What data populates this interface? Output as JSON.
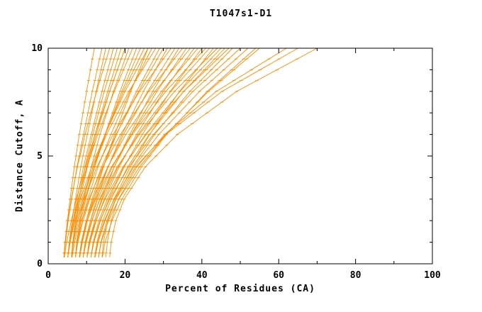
{
  "colors": {
    "line": "#FF8C00",
    "axis": "#000000",
    "background": "#FFFFFF"
  },
  "chart_data": {
    "type": "line",
    "title": "T1047s1-D1",
    "xlabel": "Percent of Residues (CA)",
    "ylabel": "Distance Cutoff, A",
    "xlim": [
      0,
      100
    ],
    "ylim": [
      0,
      10
    ],
    "x_ticks_major": [
      0,
      20,
      40,
      60,
      80,
      100
    ],
    "x_ticks_minor": [
      10,
      30,
      50,
      70,
      90
    ],
    "y_ticks_major": [
      0,
      5,
      10
    ],
    "y_ticks_minor": [
      1,
      2,
      3,
      4,
      6,
      7,
      8,
      9
    ],
    "legend": "none",
    "grid": false,
    "y_levels": [
      0.3,
      1,
      2,
      3,
      4.5,
      6,
      8,
      10
    ],
    "series": [
      {
        "x": [
          4.1,
          4.4,
          5.0,
          5.7,
          6.8,
          8.1,
          10.0,
          12
        ]
      },
      {
        "x": [
          4.1,
          4.5,
          5.2,
          6.1,
          7.5,
          9.2,
          11.5,
          14
        ]
      },
      {
        "x": [
          5.1,
          5.5,
          6.2,
          7.1,
          8.5,
          10.2,
          12.5,
          15
        ]
      },
      {
        "x": [
          4.1,
          4.4,
          5.1,
          6.0,
          7.6,
          9.6,
          12.6,
          16
        ]
      },
      {
        "x": [
          5.1,
          5.6,
          6.5,
          7.5,
          9.2,
          11.2,
          14.0,
          17
        ]
      },
      {
        "x": [
          6.1,
          6.4,
          7.1,
          8.0,
          9.6,
          11.6,
          14.6,
          18
        ]
      },
      {
        "x": [
          5.1,
          5.7,
          6.7,
          7.9,
          10.0,
          12.2,
          15.5,
          19
        ]
      },
      {
        "x": [
          6.1,
          6.4,
          7.3,
          8.3,
          10.2,
          12.5,
          16.0,
          20
        ]
      },
      {
        "x": [
          4.2,
          4.8,
          6.0,
          7.3,
          9.7,
          12.2,
          16.0,
          20
        ]
      },
      {
        "x": [
          7.1,
          7.4,
          8.3,
          9.3,
          11.2,
          13.5,
          17.0,
          21
        ]
      },
      {
        "x": [
          5.1,
          5.5,
          6.5,
          7.8,
          10.1,
          12.9,
          17.2,
          22
        ]
      },
      {
        "x": [
          6.2,
          6.9,
          8.1,
          9.6,
          12.0,
          14.8,
          18.7,
          23
        ]
      },
      {
        "x": [
          7.1,
          7.5,
          8.5,
          9.8,
          12.1,
          14.9,
          19.2,
          24
        ]
      },
      {
        "x": [
          6.1,
          6.6,
          7.7,
          9.1,
          11.7,
          14.8,
          19.6,
          25
        ]
      },
      {
        "x": [
          8.2,
          8.9,
          10.2,
          11.8,
          14.4,
          17.3,
          21.5,
          26
        ]
      },
      {
        "x": [
          5.1,
          5.7,
          6.9,
          8.4,
          11.3,
          14.8,
          20.0,
          26
        ]
      },
      {
        "x": [
          7.1,
          7.6,
          8.8,
          10.3,
          13.0,
          16.3,
          21.3,
          27
        ]
      },
      {
        "x": [
          6.1,
          6.4,
          7.4,
          8.8,
          11.7,
          15.2,
          21.0,
          28
        ]
      },
      {
        "x": [
          8.1,
          8.7,
          9.9,
          11.4,
          14.3,
          17.8,
          23.0,
          29
        ]
      },
      {
        "x": [
          7.1,
          7.7,
          9.1,
          10.8,
          13.9,
          17.7,
          23.5,
          30
        ]
      },
      {
        "x": [
          9.1,
          9.7,
          11.0,
          12.6,
          15.6,
          19.2,
          24.8,
          31
        ]
      },
      {
        "x": [
          6.1,
          6.5,
          7.7,
          9.4,
          12.7,
          16.9,
          23.8,
          32
        ]
      },
      {
        "x": [
          8.1,
          8.8,
          10.2,
          12.1,
          15.6,
          19.6,
          25.9,
          33
        ]
      },
      {
        "x": [
          10.1,
          10.8,
          12.1,
          13.9,
          17.2,
          21.2,
          27.2,
          34
        ]
      },
      {
        "x": [
          7.1,
          7.6,
          8.8,
          10.6,
          14.2,
          18.8,
          26.2,
          35
        ]
      },
      {
        "x": [
          9.1,
          9.9,
          11.4,
          13.4,
          17.2,
          21.6,
          28.3,
          36
        ]
      },
      {
        "x": [
          8.1,
          8.6,
          9.9,
          11.7,
          15.5,
          20.2,
          27.8,
          37
        ]
      },
      {
        "x": [
          10.1,
          10.9,
          12.5,
          14.6,
          18.5,
          23.0,
          30.0,
          38
        ]
      },
      {
        "x": [
          9.1,
          9.6,
          11.0,
          12.9,
          16.7,
          21.6,
          29.5,
          39
        ]
      },
      {
        "x": [
          11.1,
          11.9,
          13.6,
          15.8,
          19.8,
          24.5,
          31.8,
          40
        ]
      },
      {
        "x": [
          8.1,
          8.7,
          10.1,
          12.3,
          16.5,
          21.9,
          30.6,
          41
        ]
      },
      {
        "x": [
          10.1,
          10.6,
          12.1,
          14.1,
          18.2,
          23.4,
          31.9,
          42
        ]
      },
      {
        "x": [
          12.2,
          13.0,
          14.8,
          17.1,
          21.4,
          26.4,
          34.2,
          43
        ]
      },
      {
        "x": [
          9.1,
          9.7,
          11.3,
          13.5,
          18.0,
          23.7,
          32.9,
          44
        ]
      },
      {
        "x": [
          11.1,
          11.7,
          13.2,
          15.4,
          19.7,
          25.3,
          34.3,
          45
        ]
      },
      {
        "x": [
          12.1,
          12.7,
          14.2,
          16.4,
          20.7,
          26.3,
          35.3,
          46
        ]
      },
      {
        "x": [
          10.1,
          10.7,
          12.4,
          14.8,
          19.5,
          25.5,
          35.3,
          47
        ]
      },
      {
        "x": [
          13.1,
          13.7,
          15.3,
          17.5,
          22.0,
          27.7,
          36.9,
          48
        ]
      },
      {
        "x": [
          11.1,
          11.8,
          13.5,
          16.0,
          21.0,
          27.4,
          37.7,
          50
        ]
      },
      {
        "x": [
          12.1,
          12.8,
          14.6,
          17.2,
          22.3,
          28.8,
          39.4,
          52
        ]
      },
      {
        "x": [
          14.1,
          14.8,
          16.6,
          19.2,
          24.3,
          30.8,
          41.4,
          54
        ]
      },
      {
        "x": [
          13.1,
          13.8,
          15.7,
          18.4,
          23.8,
          30.6,
          41.7,
          55
        ]
      },
      {
        "x": [
          15.0,
          15.4,
          16.4,
          18.3,
          23.1,
          30.3,
          43.8,
          62
        ]
      },
      {
        "x": [
          14.0,
          14.4,
          15.5,
          17.6,
          22.8,
          30.6,
          45.3,
          65
        ]
      },
      {
        "x": [
          16.0,
          16.4,
          17.6,
          19.8,
          25.3,
          33.6,
          49.1,
          70
        ]
      }
    ]
  }
}
